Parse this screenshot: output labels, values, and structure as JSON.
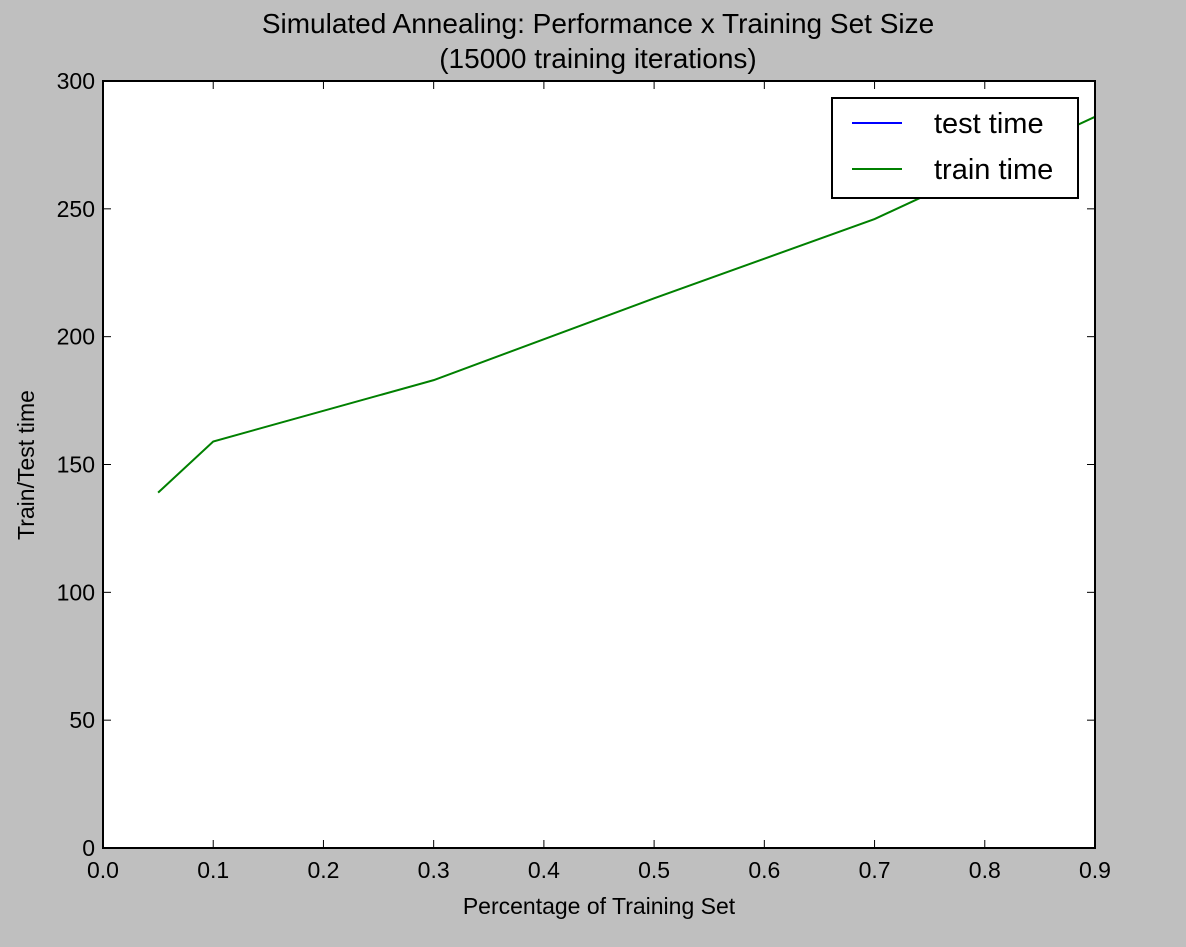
{
  "chart_data": {
    "type": "line",
    "title": "Simulated Annealing: Performance x Training Set Size",
    "subtitle": "(15000 training iterations)",
    "xlabel": "Percentage of Training Set",
    "ylabel": "Train/Test time",
    "xlim": [
      0.0,
      0.9
    ],
    "ylim": [
      0,
      300
    ],
    "xticks": [
      "0.0",
      "0.1",
      "0.2",
      "0.3",
      "0.4",
      "0.5",
      "0.6",
      "0.7",
      "0.8",
      "0.9"
    ],
    "yticks": [
      "0",
      "50",
      "100",
      "150",
      "200",
      "250",
      "300"
    ],
    "grid": false,
    "legend_position": "top-right",
    "series": [
      {
        "name": "test time",
        "color": "#0000ff",
        "x": [],
        "y": []
      },
      {
        "name": "train time",
        "color": "#008000",
        "x": [
          0.05,
          0.1,
          0.3,
          0.5,
          0.7,
          0.9
        ],
        "y": [
          139,
          159,
          183,
          215,
          246,
          286
        ]
      }
    ]
  }
}
